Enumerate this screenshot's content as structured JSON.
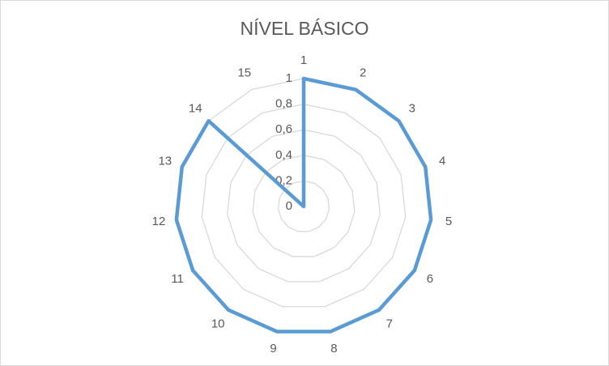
{
  "chart_data": {
    "type": "radar",
    "title": "NÍVEL BÁSICO",
    "categories": [
      "1",
      "2",
      "3",
      "4",
      "5",
      "6",
      "7",
      "8",
      "9",
      "10",
      "11",
      "12",
      "13",
      "14",
      "15"
    ],
    "series": [
      {
        "color": "#5b9bd5",
        "values": [
          1,
          1,
          1,
          1,
          1,
          1,
          1,
          1,
          1,
          1,
          1,
          1,
          1,
          1,
          0
        ]
      }
    ],
    "ylim": [
      0,
      1
    ],
    "yticks": [
      0,
      {
        "value": 0.2,
        "label": "0,2"
      },
      {
        "value": 0.4,
        "label": "0,4"
      },
      {
        "value": 0.6,
        "label": "0,6"
      },
      {
        "value": 0.8,
        "label": "0,8"
      },
      1
    ],
    "grid": true
  }
}
